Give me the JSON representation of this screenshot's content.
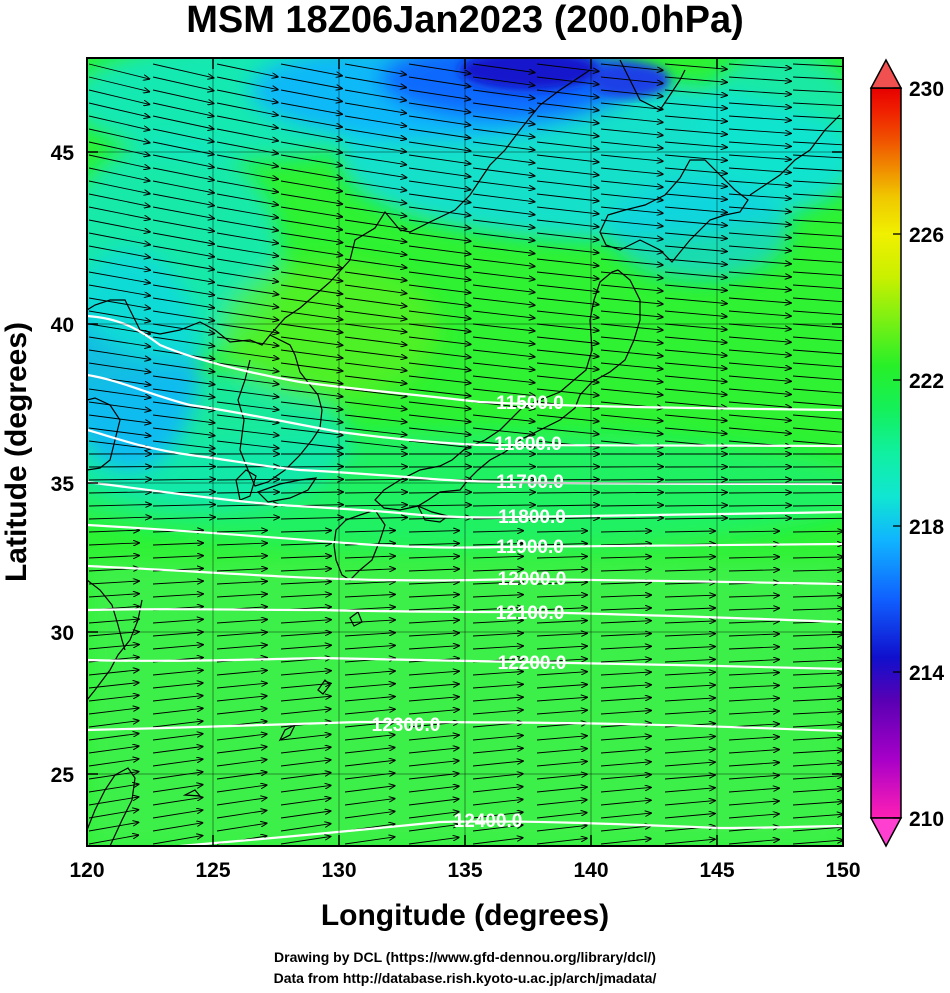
{
  "title": "MSM 18Z06Jan2023 (200.0hPa)",
  "xlabel": "Longitude (degrees)",
  "ylabel": "Latitude  (degrees)",
  "credits": [
    "Drawing by DCL (https://www.gfd-dennou.org/library/dcl/)",
    "Data from http://database.rish.kyoto-u.ac.jp/arch/jmadata/"
  ],
  "x_ticks": [
    "120",
    "125",
    "130",
    "135",
    "140",
    "145",
    "150"
  ],
  "y_ticks": [
    "25",
    "30",
    "35",
    "40",
    "45"
  ],
  "colorbar": {
    "ticks": [
      "210",
      "214",
      "218",
      "222",
      "226",
      "230"
    ],
    "min": 210,
    "max": 230,
    "colors": [
      "#ff1fb4",
      "#a800c8",
      "#5a00b4",
      "#1010cc",
      "#1060ff",
      "#10b4ff",
      "#10e6d2",
      "#10f0a0",
      "#14f05a",
      "#28f028",
      "#78f014",
      "#c8f000",
      "#f0f000",
      "#f0c800",
      "#f08c00",
      "#f05000",
      "#f01e00",
      "#e60000"
    ]
  },
  "contours": [
    {
      "label": "11500.0"
    },
    {
      "label": "11600.0"
    },
    {
      "label": "11700.0"
    },
    {
      "label": "11800.0"
    },
    {
      "label": "11900.0"
    },
    {
      "label": "12000.0"
    },
    {
      "label": "12100.0"
    },
    {
      "label": "12200.0"
    },
    {
      "label": "12300.0"
    },
    {
      "label": "12400.0"
    }
  ],
  "map_extent": {
    "lon": [
      120,
      150
    ],
    "lat": [
      22.6,
      47.8
    ]
  },
  "field_colors": {
    "main": "#28f028",
    "cool": "#10e6d2",
    "cold": "#1060ff",
    "core": "#1010cc",
    "contour": "#ffffff"
  }
}
